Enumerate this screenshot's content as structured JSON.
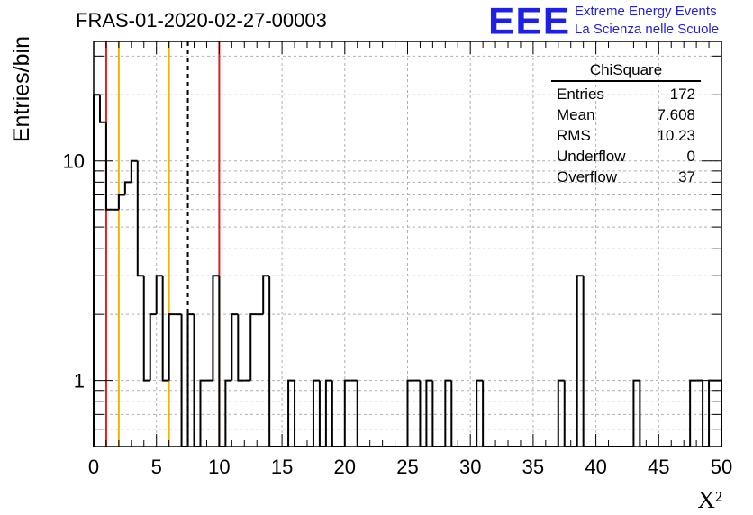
{
  "title": "FRAS-01-2020-02-27-00003",
  "logo": {
    "mark": "EEE",
    "line1": "Extreme Energy Events",
    "line2": "La Scienza nelle Scuole",
    "color": "#1f1fe6"
  },
  "stats": {
    "name": "ChiSquare",
    "rows": [
      {
        "label": "Entries",
        "value": "172"
      },
      {
        "label": "Mean",
        "value": "7.608"
      },
      {
        "label": "RMS",
        "value": "10.23"
      },
      {
        "label": "Underflow",
        "value": "0"
      },
      {
        "label": "Overflow",
        "value": "37"
      }
    ]
  },
  "chart_data": {
    "type": "histogram",
    "xlabel": "X²",
    "ylabel": "Entries/bin",
    "xlim": [
      0,
      50
    ],
    "ylim": [
      0.5,
      35
    ],
    "yscale": "log",
    "grid": true,
    "bin_width": 0.5,
    "xticks": [
      "0",
      "5",
      "10",
      "15",
      "20",
      "25",
      "30",
      "35",
      "40",
      "45",
      "50"
    ],
    "yticks": [
      "1",
      "10"
    ],
    "counts": [
      20,
      15,
      6,
      6,
      7,
      8,
      10,
      3,
      1,
      2,
      3,
      1,
      2,
      2,
      0,
      2,
      0,
      1,
      1,
      3,
      0,
      1,
      2,
      1,
      1,
      2,
      2,
      3,
      0,
      0,
      0,
      1,
      0,
      0,
      0,
      1,
      0,
      1,
      0,
      0,
      1,
      1,
      0,
      0,
      0,
      0,
      0,
      0,
      0,
      0,
      1,
      1,
      0,
      1,
      0,
      0,
      1,
      0,
      0,
      0,
      0,
      1,
      0,
      0,
      0,
      0,
      0,
      0,
      0,
      0,
      0,
      0,
      0,
      0,
      1,
      0,
      0,
      3,
      0,
      0,
      0,
      0,
      0,
      0,
      0,
      0,
      1,
      0,
      0,
      0,
      0,
      0,
      0,
      0,
      0,
      1,
      1,
      0,
      1,
      1
    ],
    "vertical_lines": [
      {
        "x": 1.0,
        "color": "#e02020",
        "style": "solid"
      },
      {
        "x": 2.0,
        "color": "#f0b400",
        "style": "solid"
      },
      {
        "x": 6.0,
        "color": "#f0b400",
        "style": "solid"
      },
      {
        "x": 7.5,
        "color": "#000000",
        "style": "dashed"
      },
      {
        "x": 10.0,
        "color": "#e02020",
        "style": "solid"
      }
    ]
  }
}
